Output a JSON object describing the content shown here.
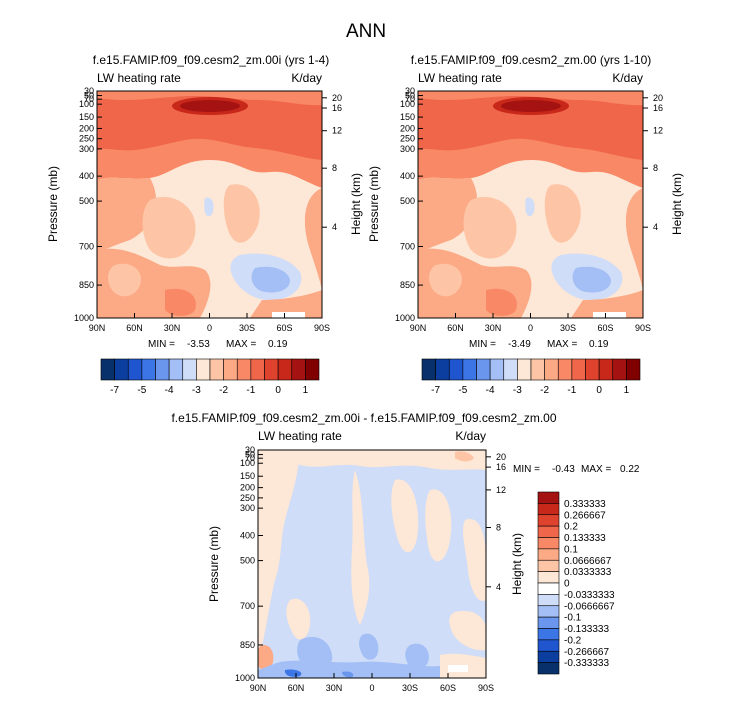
{
  "main_title": "ANN",
  "colors": {
    "diverging": [
      "#08306b",
      "#0b3e9e",
      "#1f56d0",
      "#3b75e6",
      "#6b96ee",
      "#a3bff5",
      "#cfddf8",
      "#fde7d6",
      "#fdc5a6",
      "#fca985",
      "#f98966",
      "#f0664a",
      "#e0432d",
      "#c8281a",
      "#a51212",
      "#800000"
    ]
  },
  "chart_data": [
    {
      "type": "heatmap",
      "title": "f.e15.FAMIP.f09_f09.cesm2_zm.00i (yrs 1-4)",
      "left_label": "LW heating rate",
      "right_label": "K/day",
      "xlabel": "",
      "ylabel": "Pressure (mb)",
      "ylabel_right": "Height (km)",
      "x_ticks": [
        "90N",
        "60N",
        "30N",
        "0",
        "30S",
        "60S",
        "90S"
      ],
      "y_ticks": [
        "30",
        "50",
        "70",
        "100",
        "150",
        "200",
        "250",
        "300",
        "400",
        "500",
        "700",
        "850",
        "1000"
      ],
      "y_right_ticks": [
        "20",
        "16",
        "12",
        "8",
        "4"
      ],
      "min_label": "MIN = ",
      "min_value": "-3.53",
      "max_label": "MAX = ",
      "max_value": "0.19",
      "colorbar_ticks": [
        "-7",
        "-5",
        "-4",
        "-3",
        "-2",
        "-1",
        "0",
        "1"
      ]
    },
    {
      "type": "heatmap",
      "title": "f.e15.FAMIP.f09_f09.cesm2_zm.00 (yrs 1-10)",
      "left_label": "LW heating rate",
      "right_label": "K/day",
      "xlabel": "",
      "ylabel": "Pressure (mb)",
      "ylabel_right": "Height (km)",
      "x_ticks": [
        "90N",
        "60N",
        "30N",
        "0",
        "30S",
        "60S",
        "90S"
      ],
      "y_ticks": [
        "30",
        "50",
        "70",
        "100",
        "150",
        "200",
        "250",
        "300",
        "400",
        "500",
        "700",
        "850",
        "1000"
      ],
      "y_right_ticks": [
        "20",
        "16",
        "12",
        "8",
        "4"
      ],
      "min_label": "MIN = ",
      "min_value": "-3.49",
      "max_label": "MAX = ",
      "max_value": "0.19",
      "colorbar_ticks": [
        "-7",
        "-5",
        "-4",
        "-3",
        "-2",
        "-1",
        "0",
        "1"
      ]
    },
    {
      "type": "heatmap",
      "title": "f.e15.FAMIP.f09_f09.cesm2_zm.00i - f.e15.FAMIP.f09_f09.cesm2_zm.00",
      "left_label": "LW heating rate",
      "right_label": "K/day",
      "xlabel": "",
      "ylabel": "Pressure (mb)",
      "ylabel_right": "Height (km)",
      "x_ticks": [
        "90N",
        "60N",
        "30N",
        "0",
        "30S",
        "60S",
        "90S"
      ],
      "y_ticks": [
        "30",
        "50",
        "70",
        "100",
        "150",
        "200",
        "250",
        "300",
        "400",
        "500",
        "700",
        "850",
        "1000"
      ],
      "y_right_ticks": [
        "20",
        "16",
        "12",
        "8",
        "4"
      ],
      "min_label": "MIN = ",
      "min_value": "-0.43",
      "max_label": "MAX = ",
      "max_value": "0.22",
      "colorbar_ticks": [
        "0.333333",
        "0.266667",
        "0.2",
        "0.133333",
        "0.1",
        "0.0666667",
        "0.0333333",
        "0",
        "-0.0333333",
        "-0.0666667",
        "-0.1",
        "-0.133333",
        "-0.2",
        "-0.266667",
        "-0.333333"
      ]
    }
  ]
}
